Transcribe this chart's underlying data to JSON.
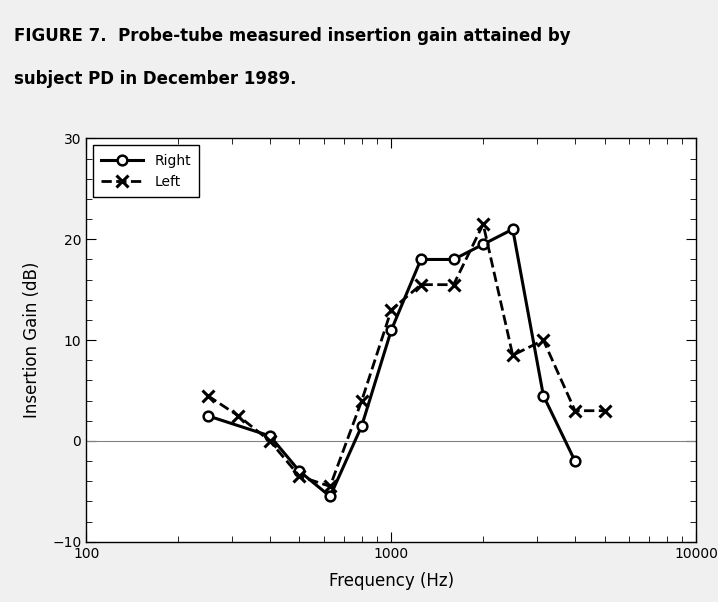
{
  "title_line1": "FIGURE 7.  Probe-tube measured insertion gain attained by",
  "title_line2": "subject PD in December 1989.",
  "xlabel": "Frequency (Hz)",
  "ylabel": "Insertion Gain (dB)",
  "right_freq": [
    250,
    400,
    500,
    630,
    800,
    1000,
    1250,
    1600,
    2000,
    2500,
    3150,
    4000
  ],
  "right_gain": [
    2.5,
    0.5,
    -3.0,
    -5.5,
    1.5,
    11.0,
    18.0,
    18.0,
    19.5,
    21.0,
    4.5,
    -2.0
  ],
  "left_freq": [
    250,
    315,
    400,
    500,
    630,
    800,
    1000,
    1250,
    1600,
    2000,
    2500,
    3150,
    4000,
    5000
  ],
  "left_gain": [
    4.5,
    2.5,
    0.0,
    -3.5,
    -4.5,
    4.0,
    13.0,
    15.5,
    15.5,
    21.5,
    8.5,
    10.0,
    3.0,
    3.0
  ],
  "xlim": [
    100,
    10000
  ],
  "ylim": [
    -10,
    30
  ],
  "yticks": [
    -10,
    0,
    10,
    20,
    30
  ],
  "hline_y": 0,
  "right_color": "#000000",
  "left_color": "#000000",
  "background_color": "#f0f0f0",
  "legend_labels": [
    "Right",
    "Left"
  ],
  "title_fontsize": 12,
  "axis_label_fontsize": 12,
  "tick_fontsize": 10
}
